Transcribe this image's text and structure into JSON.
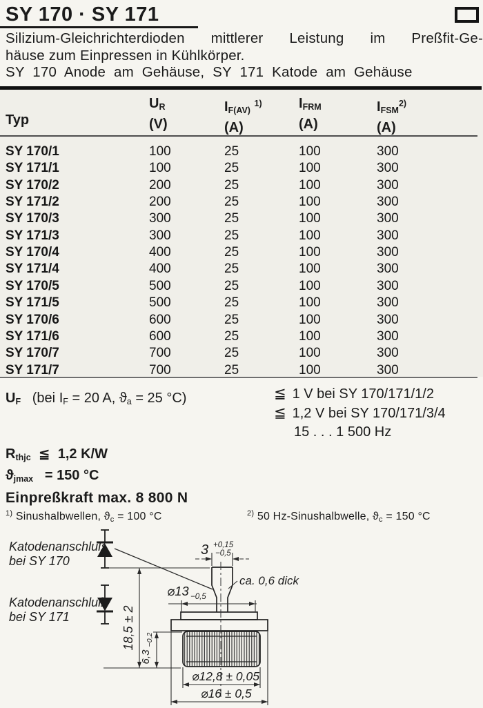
{
  "header": {
    "title": "SY 170 · SY 171",
    "corner_icon": "rectangle-outline",
    "desc_line1": "Silizium-Gleichrichterdioden mittlerer Leistung im Preßfit-Ge-",
    "desc_line2": "häuse zum Einpressen in Kühlkörper.",
    "desc_line3": "SY 170 Anode am Gehäuse, SY 171 Katode am Gehäuse"
  },
  "table": {
    "col_typ": "Typ",
    "cols": [
      {
        "sym": "U",
        "sub": "R",
        "sup": "",
        "unit": "(V)"
      },
      {
        "sym": "I",
        "sub": "F(AV)",
        "sup": "1)",
        "unit": "(A)"
      },
      {
        "sym": "I",
        "sub": "FRM",
        "sup": "",
        "unit": "(A)"
      },
      {
        "sym": "I",
        "sub": "FSM",
        "sup": "2)",
        "unit": "(A)"
      }
    ],
    "rows": [
      {
        "typ": "SY 170/1",
        "ur": "100",
        "ifav": "25",
        "ifrm": "100",
        "ifsm": "300"
      },
      {
        "typ": "SY 171/1",
        "ur": "100",
        "ifav": "25",
        "ifrm": "100",
        "ifsm": "300"
      },
      {
        "typ": "SY 170/2",
        "ur": "200",
        "ifav": "25",
        "ifrm": "100",
        "ifsm": "300"
      },
      {
        "typ": "SY 171/2",
        "ur": "200",
        "ifav": "25",
        "ifrm": "100",
        "ifsm": "300"
      },
      {
        "typ": "SY 170/3",
        "ur": "300",
        "ifav": "25",
        "ifrm": "100",
        "ifsm": "300"
      },
      {
        "typ": "SY 171/3",
        "ur": "300",
        "ifav": "25",
        "ifrm": "100",
        "ifsm": "300"
      },
      {
        "typ": "SY 170/4",
        "ur": "400",
        "ifav": "25",
        "ifrm": "100",
        "ifsm": "300"
      },
      {
        "typ": "SY 171/4",
        "ur": "400",
        "ifav": "25",
        "ifrm": "100",
        "ifsm": "300"
      },
      {
        "typ": "SY 170/5",
        "ur": "500",
        "ifav": "25",
        "ifrm": "100",
        "ifsm": "300"
      },
      {
        "typ": "SY 171/5",
        "ur": "500",
        "ifav": "25",
        "ifrm": "100",
        "ifsm": "300"
      },
      {
        "typ": "SY 170/6",
        "ur": "600",
        "ifav": "25",
        "ifrm": "100",
        "ifsm": "300"
      },
      {
        "typ": "SY 171/6",
        "ur": "600",
        "ifav": "25",
        "ifrm": "100",
        "ifsm": "300"
      },
      {
        "typ": "SY 170/7",
        "ur": "700",
        "ifav": "25",
        "ifrm": "100",
        "ifsm": "300"
      },
      {
        "typ": "SY 171/7",
        "ur": "700",
        "ifav": "25",
        "ifrm": "100",
        "ifsm": "300"
      }
    ]
  },
  "uf": {
    "sym": "U",
    "sym_sub": "F",
    "cond_pre": "(bei",
    "i_sym": "I",
    "i_sub": "F",
    "eq1": "= 20 A,",
    "theta": "ϑ",
    "theta_sub": "a",
    "eq2": "= 25 °C)",
    "lines": [
      {
        "op": "≦",
        "text": "1 V bei SY 170/171/1/2"
      },
      {
        "op": "≦",
        "text": "1,2 V bei SY 170/171/3/4"
      }
    ],
    "freq": "15 . . . 1 500 Hz"
  },
  "ratings": {
    "rth_sym": "R",
    "rth_sub": "thjc",
    "rth_op": "≦",
    "rth_val": "1,2 K/W",
    "tj_sym": "ϑ",
    "tj_sub": "jmax",
    "tj_op": "=",
    "tj_val": "150 °C",
    "press": "Einpreßkraft max. 8 800 N"
  },
  "footnotes": {
    "fn1_mark": "1)",
    "fn1_text": "Sinushalbwellen,",
    "fn1_theta": "ϑ",
    "fn1_sub": "c",
    "fn1_val": "= 100 °C",
    "fn2_mark": "2)",
    "fn2_text": "50 Hz-Sinushalbwelle,",
    "fn2_theta": "ϑ",
    "fn2_sub": "c",
    "fn2_val": "= 150 °C"
  },
  "diagram": {
    "cathode_170_l1": "Katodenanschluß",
    "cathode_170_l2": "bei SY 170",
    "cathode_171_l1": "Katodenanschluß",
    "cathode_171_l2": "bei SY 171",
    "tab_width": "3",
    "tab_tol_plus": "+0,15",
    "tab_tol_minus": "−0,5",
    "thickness": "ca. 0,6 dick",
    "dia_disc": "⌀13",
    "dia_disc_tol": "−0,5",
    "height_total": "18,5 ± 2",
    "knurl_len": "6,3",
    "knurl_len_tol": "−0,2",
    "dia_knurl": "⌀12,8 ± 0,05",
    "dia_flange": "⌀16 ± 0,5"
  }
}
